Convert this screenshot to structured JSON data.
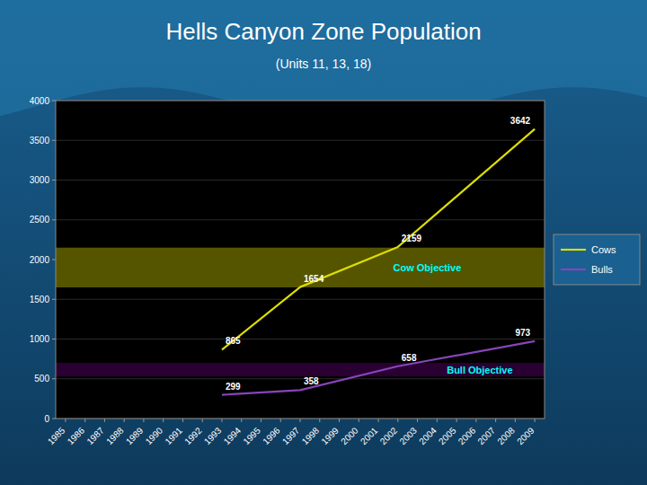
{
  "chart_data": {
    "type": "line",
    "title": "Hells Canyon Zone Population",
    "subtitle": "(Units 11, 13, 18)",
    "x": [
      1993,
      1997,
      2002,
      2009
    ],
    "series": [
      {
        "name": "Cows",
        "color": "#DDDD00",
        "values": [
          865,
          1654,
          2159,
          3642
        ]
      },
      {
        "name": "Bulls",
        "color": "#8844BB",
        "values": [
          299,
          358,
          658,
          973
        ]
      }
    ],
    "bands": [
      {
        "name": "Cow Objective",
        "low": 1650,
        "high": 2150,
        "color": "#555500"
      },
      {
        "name": "Bull Objective",
        "low": 530,
        "high": 700,
        "color": "#2a0033"
      }
    ],
    "xlim": [
      1984.5,
      2009.5
    ],
    "xticks": [
      1985,
      1986,
      1987,
      1988,
      1989,
      1990,
      1991,
      1992,
      1993,
      1994,
      1995,
      1996,
      1997,
      1998,
      1999,
      2000,
      2001,
      2002,
      2003,
      2004,
      2005,
      2006,
      2007,
      2008,
      2009
    ],
    "ylim": [
      0,
      4000
    ],
    "yticks": [
      0,
      500,
      1000,
      1500,
      2000,
      2500,
      3000,
      3500,
      4000
    ],
    "grid": true,
    "legend": "right",
    "data_labels": true
  }
}
